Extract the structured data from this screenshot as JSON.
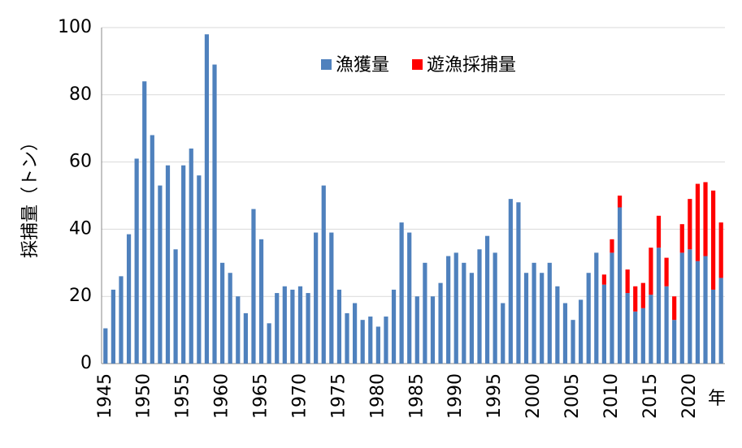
{
  "chart_data": {
    "type": "stacked_bar",
    "y_label": "採捕量（トン）",
    "x_label": "年",
    "categories": [
      "1945",
      null,
      null,
      null,
      null,
      "1950",
      null,
      null,
      null,
      null,
      "1955",
      null,
      null,
      null,
      null,
      "1960",
      null,
      null,
      null,
      null,
      "1965",
      null,
      null,
      null,
      null,
      "1970",
      null,
      null,
      null,
      null,
      "1975",
      null,
      null,
      null,
      null,
      "1980",
      null,
      null,
      null,
      null,
      "1985",
      null,
      null,
      null,
      null,
      "1990",
      null,
      null,
      null,
      null,
      "1995",
      null,
      null,
      null,
      null,
      "2000",
      null,
      null,
      null,
      null,
      "2005",
      null,
      null,
      null,
      null,
      "2010",
      null,
      null,
      null,
      null,
      "2015",
      null,
      null,
      null,
      null,
      "2020",
      null,
      null,
      null,
      null
    ],
    "series": [
      {
        "name": "漁獲量",
        "color": "#4f81bd",
        "values": [
          10.5,
          22,
          26,
          38.5,
          61,
          84,
          68,
          53,
          59,
          34,
          59,
          64,
          56,
          98,
          89,
          30,
          27,
          20,
          15,
          46,
          37,
          12,
          21,
          23,
          22,
          23,
          21,
          39,
          53,
          39,
          22,
          15,
          18,
          13,
          14,
          11,
          14,
          22,
          42,
          39,
          20,
          30,
          20,
          24,
          32,
          33,
          30,
          27,
          34,
          38,
          33,
          18,
          49,
          48,
          27,
          30,
          27,
          30,
          23,
          18,
          13,
          19,
          27,
          33,
          23.5,
          33,
          46.5,
          21,
          15.5,
          16.5,
          20.5,
          34.5,
          23,
          13,
          33,
          34,
          30.5,
          32,
          22,
          25.5
        ]
      },
      {
        "name": "遊漁採捕量",
        "color": "#ff0000",
        "values": [
          null,
          null,
          null,
          null,
          null,
          null,
          null,
          null,
          null,
          null,
          null,
          null,
          null,
          null,
          null,
          null,
          null,
          null,
          null,
          null,
          null,
          null,
          null,
          null,
          null,
          null,
          null,
          null,
          null,
          null,
          null,
          null,
          null,
          null,
          null,
          null,
          null,
          null,
          null,
          null,
          null,
          null,
          null,
          null,
          null,
          null,
          null,
          null,
          null,
          null,
          null,
          null,
          null,
          null,
          null,
          null,
          null,
          null,
          null,
          null,
          null,
          null,
          null,
          null,
          3,
          4,
          3.5,
          7,
          7.5,
          7.5,
          14,
          9.5,
          8.5,
          7,
          8.5,
          15,
          23,
          22,
          29.5,
          16.5
        ]
      }
    ],
    "ylim": [
      0,
      100
    ],
    "yticks": [
      0,
      20,
      40,
      60,
      80,
      100
    ],
    "grid": true
  }
}
